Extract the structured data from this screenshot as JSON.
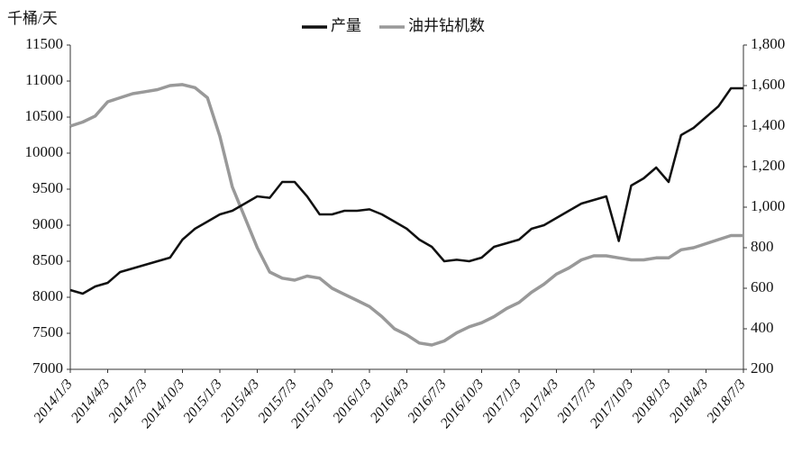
{
  "chart_data": {
    "type": "line",
    "y_label": "千桶/天",
    "categories": [
      "2014/1/3",
      null,
      null,
      "2014/4/3",
      null,
      null,
      "2014/7/3",
      null,
      null,
      "2014/10/3",
      null,
      null,
      "2015/1/3",
      null,
      null,
      "2015/4/3",
      null,
      null,
      "2015/7/3",
      null,
      null,
      "2015/10/3",
      null,
      null,
      "2016/1/3",
      null,
      null,
      "2016/4/3",
      null,
      null,
      "2016/7/3",
      null,
      null,
      "2016/10/3",
      null,
      null,
      "2017/1/3",
      null,
      null,
      "2017/4/3",
      null,
      null,
      "2017/7/3",
      null,
      null,
      "2017/10/3",
      null,
      null,
      "2018/1/3",
      null,
      null,
      "2018/4/3",
      null,
      null,
      "2018/7/3"
    ],
    "series": [
      {
        "name": "产量",
        "color": "#111111",
        "axis": "y",
        "values": [
          8100,
          8050,
          8150,
          8200,
          8350,
          8400,
          8450,
          8500,
          8550,
          8800,
          8950,
          9050,
          9150,
          9200,
          9300,
          9400,
          9380,
          9600,
          9600,
          9400,
          9150,
          9150,
          9200,
          9200,
          9220,
          9150,
          9050,
          8950,
          8800,
          8700,
          8500,
          8520,
          8500,
          8550,
          8700,
          8750,
          8800,
          8950,
          9000,
          9100,
          9200,
          9300,
          9350,
          9400,
          8780,
          9550,
          9650,
          9800,
          9600,
          10250,
          10350,
          10500,
          10650,
          10900,
          10900
        ]
      },
      {
        "name": "油井钻机数",
        "color": "#999999",
        "axis": "y2",
        "values": [
          1400,
          1420,
          1450,
          1520,
          1540,
          1560,
          1570,
          1580,
          1600,
          1605,
          1590,
          1540,
          1350,
          1100,
          950,
          800,
          680,
          650,
          640,
          660,
          650,
          600,
          570,
          540,
          510,
          460,
          400,
          370,
          330,
          320,
          340,
          380,
          410,
          430,
          460,
          500,
          530,
          580,
          620,
          670,
          700,
          740,
          760,
          760,
          750,
          740,
          740,
          750,
          750,
          790,
          800,
          820,
          840,
          860,
          860
        ]
      }
    ],
    "ylim": [
      7000,
      11500
    ],
    "yticks": [
      7000,
      7500,
      8000,
      8500,
      9000,
      9500,
      10000,
      10500,
      11000,
      11500
    ],
    "y2lim": [
      200,
      1800
    ],
    "y2ticks": [
      200,
      400,
      600,
      800,
      {
        "value": 1000,
        "label": "1,000"
      },
      {
        "value": 1200,
        "label": "1,200"
      },
      {
        "value": 1400,
        "label": "1,400"
      },
      {
        "value": 1600,
        "label": "1,600"
      },
      {
        "value": 1800,
        "label": "1,800"
      }
    ]
  }
}
